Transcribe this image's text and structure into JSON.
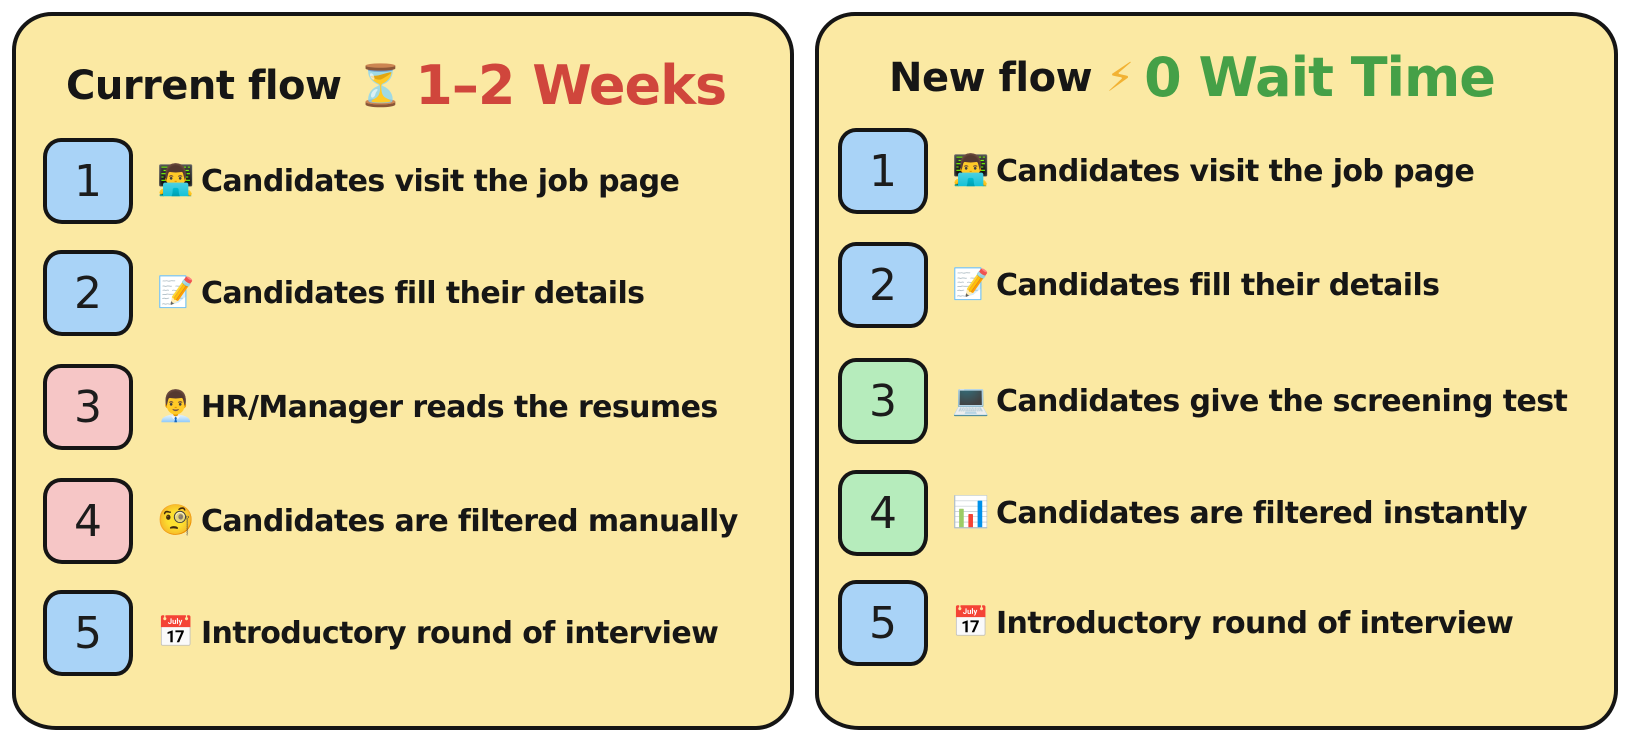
{
  "current_flow": {
    "label": "Current flow",
    "icon": "hourglass-icon",
    "icon_glyph": "⏳",
    "highlight": "1–2 Weeks",
    "highlight_color": "#d0463c",
    "steps": [
      {
        "number": "1",
        "icon": "technologist-icon",
        "icon_glyph": "👨‍💻",
        "text": "Candidates visit the job page",
        "box_color": "#a9d3f7"
      },
      {
        "number": "2",
        "icon": "memo-icon",
        "icon_glyph": "📝",
        "text": "Candidates fill their details",
        "box_color": "#a9d3f7"
      },
      {
        "number": "3",
        "icon": "office-worker-icon",
        "icon_glyph": "👨‍💼",
        "text": "HR/Manager reads the resumes",
        "box_color": "#f6c6c6"
      },
      {
        "number": "4",
        "icon": "monocle-face-icon",
        "icon_glyph": "🧐",
        "text": "Candidates are filtered manually",
        "box_color": "#f6c6c6"
      },
      {
        "number": "5",
        "icon": "calendar-icon",
        "icon_glyph": "📅",
        "text": "Introductory round of interview",
        "box_color": "#a9d3f7"
      }
    ]
  },
  "new_flow": {
    "label": "New flow",
    "icon": "lightning-icon",
    "icon_glyph": "⚡",
    "highlight": "0 Wait Time",
    "highlight_color": "#45a047",
    "steps": [
      {
        "number": "1",
        "icon": "technologist-icon",
        "icon_glyph": "👨‍💻",
        "text": "Candidates visit the job page",
        "box_color": "#a9d3f7"
      },
      {
        "number": "2",
        "icon": "memo-icon",
        "icon_glyph": "📝",
        "text": "Candidates fill their details",
        "box_color": "#a9d3f7"
      },
      {
        "number": "3",
        "icon": "laptop-icon",
        "icon_glyph": "💻",
        "text": "Candidates give the screening test",
        "box_color": "#b6ecbc"
      },
      {
        "number": "4",
        "icon": "bar-chart-icon",
        "icon_glyph": "📊",
        "text": "Candidates are filtered instantly",
        "box_color": "#b6ecbc"
      },
      {
        "number": "5",
        "icon": "calendar-icon",
        "icon_glyph": "📅",
        "text": "Introductory round of interview",
        "box_color": "#a9d3f7"
      }
    ]
  }
}
